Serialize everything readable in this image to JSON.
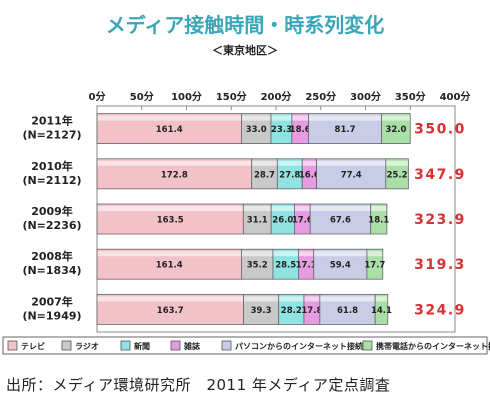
{
  "chart_data": {
    "type": "bar",
    "stacked": true,
    "orientation": "horizontal",
    "title": "メディア接触時間・時系列変化",
    "subtitle": "＜東京地区＞",
    "x_ticks": [
      "0分",
      "50分",
      "100分",
      "150分",
      "200分",
      "250分",
      "300分",
      "350分",
      "400分"
    ],
    "xlim": [
      0,
      400
    ],
    "grid": false,
    "legend_position": "bottom",
    "categories": [
      "2011年\n(N=2127)",
      "2010年\n(N=2112)",
      "2009年\n(N=2236)",
      "2008年\n(N=1834)",
      "2007年\n(N=1949)"
    ],
    "category_lines": [
      [
        "2011年",
        "(N=2127)"
      ],
      [
        "2010年",
        "(N=2112)"
      ],
      [
        "2009年",
        "(N=2236)"
      ],
      [
        "2008年",
        "(N=1834)"
      ],
      [
        "2007年",
        "(N=1949)"
      ]
    ],
    "totals": [
      "350.0",
      "347.9",
      "323.9",
      "319.3",
      "324.9"
    ],
    "series": [
      {
        "name": "テレビ",
        "color": "#f2c2c8",
        "values": [
          161.4,
          172.8,
          163.5,
          161.4,
          163.7
        ]
      },
      {
        "name": "ラジオ",
        "color": "#c9c9c9",
        "values": [
          33.0,
          28.7,
          31.1,
          35.2,
          39.3
        ]
      },
      {
        "name": "新聞",
        "color": "#8fe3e3",
        "values": [
          23.3,
          27.8,
          26.0,
          28.5,
          28.2
        ]
      },
      {
        "name": "雑誌",
        "color": "#e79be0",
        "values": [
          18.6,
          16.0,
          17.6,
          17.1,
          17.8
        ]
      },
      {
        "name": "パソコンからのインターネット接続",
        "color": "#c9cce6",
        "values": [
          81.7,
          77.4,
          67.6,
          59.4,
          61.8
        ]
      },
      {
        "name": "携帯電話からのインターネット接続",
        "color": "#abdfa8",
        "values": [
          32.0,
          25.2,
          18.1,
          17.7,
          14.1
        ]
      }
    ],
    "value_labels": [
      [
        "161.4",
        "33.0",
        "23.3",
        "18.6",
        "81.7",
        "32.0"
      ],
      [
        "172.8",
        "28.7",
        "27.8",
        "16.0",
        "77.4",
        "25.2"
      ],
      [
        "163.5",
        "31.1",
        "26.0",
        "17.6",
        "67.6",
        "18.1"
      ],
      [
        "161.4",
        "35.2",
        "28.5",
        "17.1",
        "59.4",
        "17.7"
      ],
      [
        "163.7",
        "39.3",
        "28.2",
        "17.8",
        "61.8",
        "14.1"
      ]
    ]
  },
  "colors": {
    "title": "#3aa7b8",
    "total": "#d93030",
    "border": "#666666"
  },
  "source": "出所：メディア環境研究所　2011 年メディア定点調査"
}
